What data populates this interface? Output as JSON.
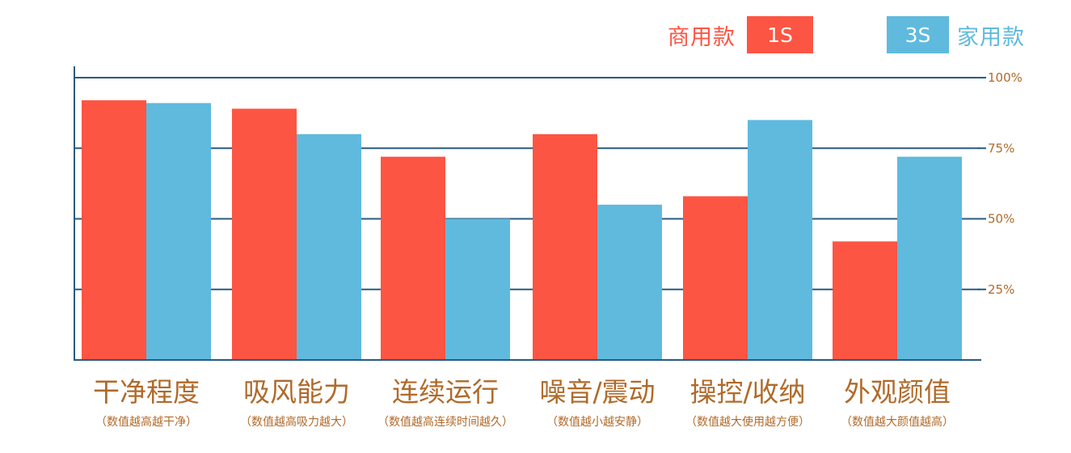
{
  "legend": {
    "series1": {
      "label": "商用款",
      "box": "1S"
    },
    "series2": {
      "label": "家用款",
      "box": "3S"
    }
  },
  "colors": {
    "series1": "#fd5543",
    "series2": "#5fbade",
    "axis": "#2a5a7e",
    "tick_text": "#b06a2a",
    "category_text": "#b06a2a"
  },
  "chart_data": {
    "type": "bar",
    "categories": [
      "干净程度",
      "吸风能力",
      "连续运行",
      "噪音/震动",
      "操控/收纳",
      "外观颜值"
    ],
    "category_notes": [
      "（数值越高越干净）",
      "（数值越高吸力越大）",
      "（数值越高连续时间越久）",
      "（数值越小越安静）",
      "（数值越大使用越方便）",
      "（数值越大颜值越高）"
    ],
    "series": [
      {
        "name": "1S",
        "values": [
          92,
          89,
          72,
          80,
          58,
          42
        ]
      },
      {
        "name": "3S",
        "values": [
          91,
          80,
          50,
          55,
          85,
          72
        ]
      }
    ],
    "y_ticks": [
      25,
      50,
      75,
      100
    ],
    "y_tick_labels": [
      "25%",
      "50%",
      "75%",
      "100%"
    ],
    "ylim": [
      0,
      100
    ],
    "y_axis_side": "right",
    "grid": true,
    "legend_position": "top-right"
  }
}
